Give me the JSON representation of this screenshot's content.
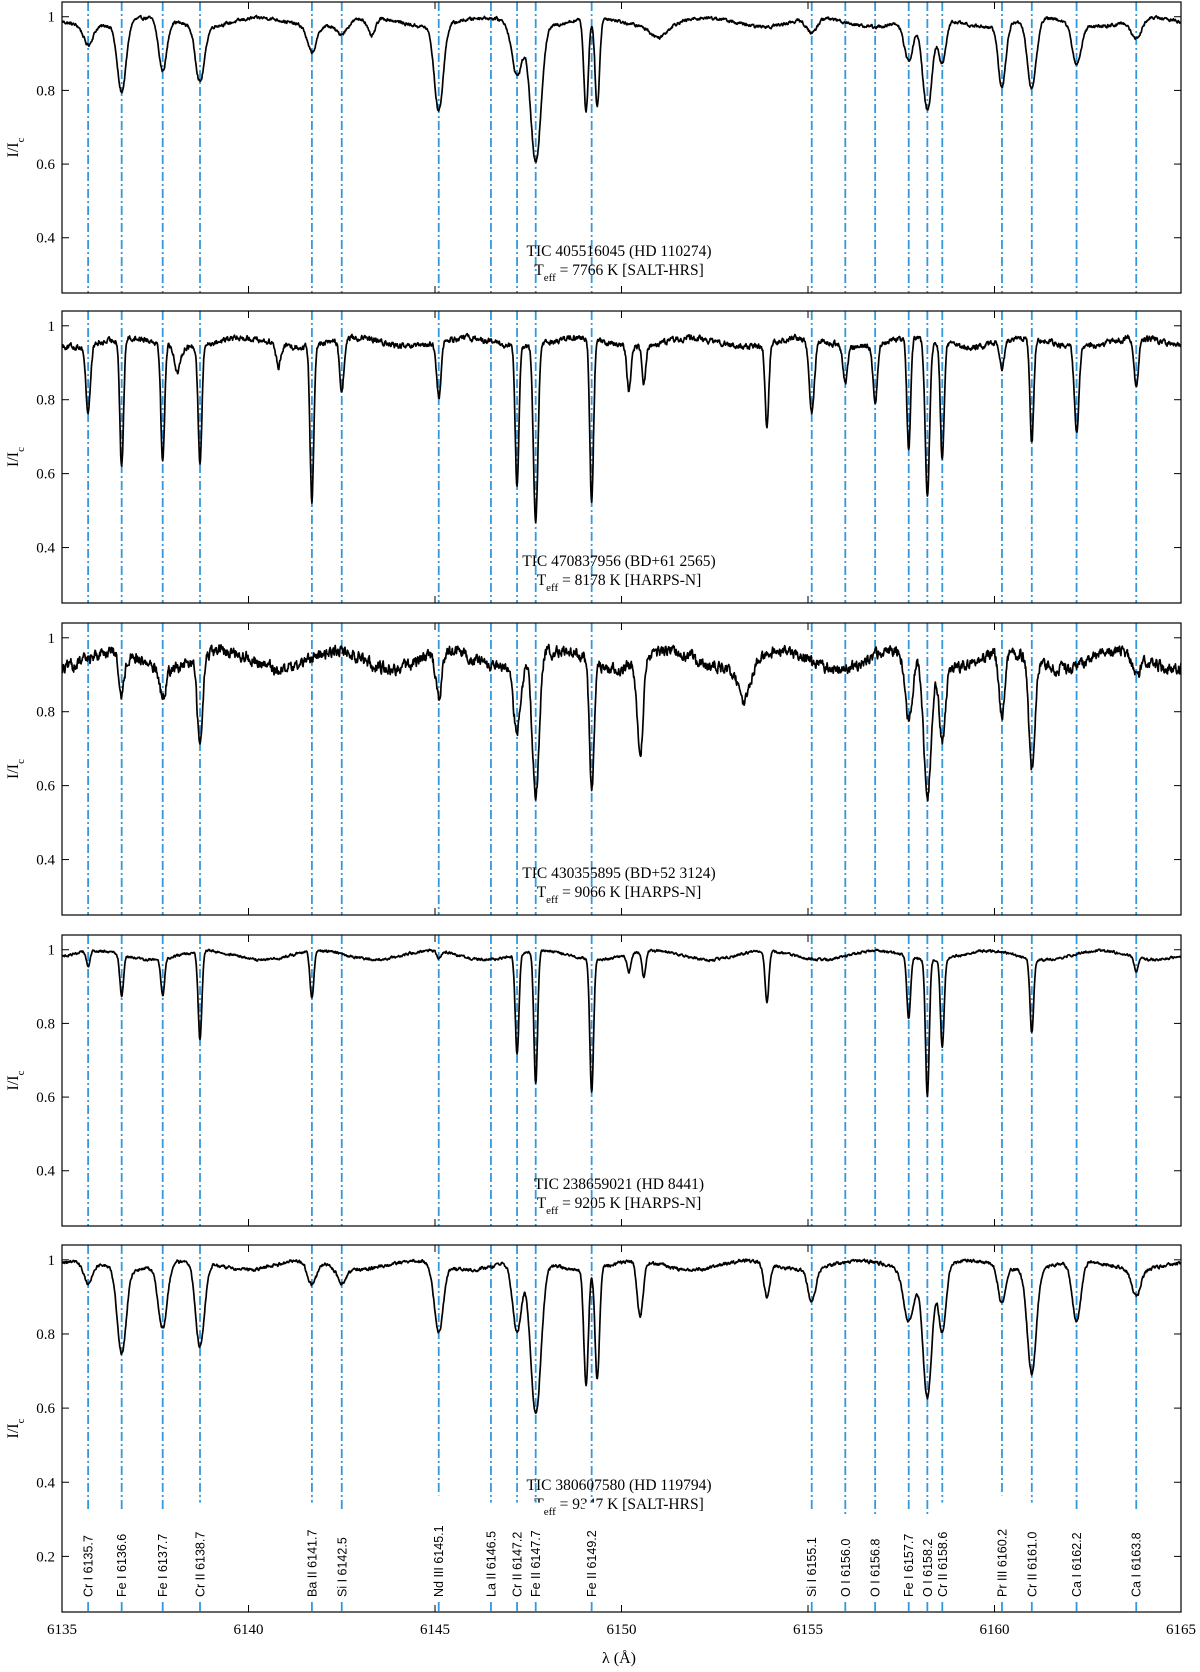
{
  "figure": {
    "xlabel": "λ (Å)",
    "xlim": [
      6135,
      6165
    ],
    "x_ticks": [
      6135,
      6140,
      6145,
      6150,
      6155,
      6160,
      6165
    ],
    "line_color": "#3399dd",
    "spectrum_color": "#000000"
  },
  "chart_data": [
    {
      "type": "line",
      "title": "",
      "annotation": [
        "TIC 405516045 (HD 110274)",
        "Teff = 7766 K [SALT-HRS]"
      ],
      "xlabel": "",
      "ylabel": "I/Ic",
      "xlim": [
        6135,
        6165
      ],
      "ylim": [
        0.25,
        1.04
      ],
      "y_ticks": [
        0.4,
        0.6,
        0.8,
        1
      ],
      "noise": 0.008,
      "series": [
        {
          "continuum": 0.985,
          "absorption": [
            [
              6135.7,
              0.05,
              0.12
            ],
            [
              6136.6,
              0.19,
              0.12
            ],
            [
              6137.7,
              0.14,
              0.11
            ],
            [
              6138.7,
              0.15,
              0.12
            ],
            [
              6141.7,
              0.07,
              0.12
            ],
            [
              6142.5,
              0.03,
              0.15
            ],
            [
              6143.3,
              0.05,
              0.1
            ],
            [
              6145.1,
              0.23,
              0.12
            ],
            [
              6147.2,
              0.14,
              0.14
            ],
            [
              6147.7,
              0.37,
              0.14
            ],
            [
              6149.05,
              0.25,
              0.06
            ],
            [
              6149.35,
              0.24,
              0.06
            ],
            [
              6151.0,
              0.03,
              0.2
            ],
            [
              6155.1,
              0.04,
              0.14
            ],
            [
              6157.7,
              0.11,
              0.12
            ],
            [
              6158.2,
              0.25,
              0.13
            ],
            [
              6158.6,
              0.12,
              0.1
            ],
            [
              6160.2,
              0.17,
              0.1
            ],
            [
              6161.0,
              0.19,
              0.12
            ],
            [
              6162.2,
              0.11,
              0.12
            ],
            [
              6163.8,
              0.05,
              0.14
            ]
          ]
        }
      ]
    },
    {
      "type": "line",
      "title": "",
      "annotation": [
        "TIC 470837956 (BD+61 2565)",
        "Teff = 8178 K [HARPS-N]"
      ],
      "xlabel": "",
      "ylabel": "I/Ic",
      "xlim": [
        6135,
        6165
      ],
      "ylim": [
        0.25,
        1.04
      ],
      "y_ticks": [
        0.4,
        0.6,
        0.8,
        1
      ],
      "noise": 0.014,
      "series": [
        {
          "continuum": 0.955,
          "absorption": [
            [
              6135.7,
              0.18,
              0.06
            ],
            [
              6136.6,
              0.35,
              0.05
            ],
            [
              6137.7,
              0.32,
              0.05
            ],
            [
              6138.1,
              0.07,
              0.08
            ],
            [
              6138.7,
              0.32,
              0.05
            ],
            [
              6140.8,
              0.06,
              0.06
            ],
            [
              6141.7,
              0.42,
              0.05
            ],
            [
              6142.5,
              0.14,
              0.06
            ],
            [
              6145.1,
              0.15,
              0.06
            ],
            [
              6147.2,
              0.38,
              0.05
            ],
            [
              6147.7,
              0.48,
              0.06
            ],
            [
              6149.2,
              0.44,
              0.05
            ],
            [
              6150.2,
              0.12,
              0.05
            ],
            [
              6150.6,
              0.1,
              0.05
            ],
            [
              6153.9,
              0.22,
              0.05
            ],
            [
              6155.1,
              0.2,
              0.07
            ],
            [
              6156.0,
              0.1,
              0.06
            ],
            [
              6156.8,
              0.15,
              0.06
            ],
            [
              6157.7,
              0.3,
              0.05
            ],
            [
              6158.2,
              0.42,
              0.06
            ],
            [
              6158.6,
              0.32,
              0.05
            ],
            [
              6160.2,
              0.08,
              0.06
            ],
            [
              6161.0,
              0.28,
              0.05
            ],
            [
              6162.2,
              0.23,
              0.06
            ],
            [
              6163.8,
              0.13,
              0.06
            ]
          ]
        }
      ]
    },
    {
      "type": "line",
      "title": "",
      "annotation": [
        "TIC 430355895 (BD+52 3124)",
        "Teff = 9066 K [HARPS-N]"
      ],
      "xlabel": "",
      "ylabel": "I/Ic",
      "xlim": [
        6135,
        6165
      ],
      "ylim": [
        0.25,
        1.04
      ],
      "y_ticks": [
        0.4,
        0.6,
        0.8,
        1
      ],
      "noise": 0.028,
      "series": [
        {
          "continuum": 0.94,
          "absorption": [
            [
              6136.6,
              0.11,
              0.08
            ],
            [
              6137.7,
              0.08,
              0.08
            ],
            [
              6138.7,
              0.24,
              0.07
            ],
            [
              6145.1,
              0.12,
              0.08
            ],
            [
              6147.2,
              0.17,
              0.1
            ],
            [
              6147.7,
              0.37,
              0.09
            ],
            [
              6149.2,
              0.36,
              0.06
            ],
            [
              6150.5,
              0.25,
              0.08
            ],
            [
              6153.3,
              0.1,
              0.15
            ],
            [
              6157.7,
              0.18,
              0.1
            ],
            [
              6158.2,
              0.36,
              0.1
            ],
            [
              6158.6,
              0.2,
              0.08
            ],
            [
              6160.2,
              0.17,
              0.08
            ],
            [
              6161.0,
              0.3,
              0.08
            ],
            [
              6163.8,
              0.06,
              0.1
            ]
          ]
        }
      ]
    },
    {
      "type": "line",
      "title": "",
      "annotation": [
        "TIC 238659021 (HD 8441)",
        "Teff = 9205 K [HARPS-N]"
      ],
      "xlabel": "",
      "ylabel": "I/Ic",
      "xlim": [
        6135,
        6165
      ],
      "ylim": [
        0.25,
        1.04
      ],
      "y_ticks": [
        0.4,
        0.6,
        0.8,
        1
      ],
      "noise": 0.006,
      "series": [
        {
          "continuum": 0.985,
          "absorption": [
            [
              6135.7,
              0.04,
              0.05
            ],
            [
              6136.6,
              0.11,
              0.05
            ],
            [
              6137.7,
              0.1,
              0.05
            ],
            [
              6138.7,
              0.24,
              0.05
            ],
            [
              6141.7,
              0.13,
              0.05
            ],
            [
              6145.1,
              0.02,
              0.05
            ],
            [
              6147.2,
              0.27,
              0.05
            ],
            [
              6147.7,
              0.36,
              0.05
            ],
            [
              6149.2,
              0.36,
              0.05
            ],
            [
              6150.2,
              0.05,
              0.05
            ],
            [
              6150.6,
              0.07,
              0.05
            ],
            [
              6153.9,
              0.14,
              0.05
            ],
            [
              6157.7,
              0.17,
              0.05
            ],
            [
              6158.2,
              0.37,
              0.05
            ],
            [
              6158.6,
              0.24,
              0.05
            ],
            [
              6161.0,
              0.2,
              0.05
            ],
            [
              6163.8,
              0.04,
              0.05
            ]
          ]
        }
      ]
    },
    {
      "type": "line",
      "title": "",
      "annotation": [
        "TIC 380607580 (HD 119794)",
        "Teff = 9347 K [SALT-HRS]"
      ],
      "xlabel": "λ (Å)",
      "ylabel": "I/Ic",
      "xlim": [
        6135,
        6165
      ],
      "ylim": [
        0.05,
        1.04
      ],
      "y_ticks": [
        0.2,
        0.4,
        0.6,
        0.8,
        1
      ],
      "noise": 0.008,
      "series": [
        {
          "continuum": 0.985,
          "absorption": [
            [
              6135.7,
              0.06,
              0.12
            ],
            [
              6136.6,
              0.23,
              0.12
            ],
            [
              6137.7,
              0.17,
              0.12
            ],
            [
              6138.7,
              0.23,
              0.12
            ],
            [
              6141.7,
              0.06,
              0.12
            ],
            [
              6142.5,
              0.04,
              0.12
            ],
            [
              6145.1,
              0.18,
              0.12
            ],
            [
              6147.2,
              0.19,
              0.12
            ],
            [
              6147.7,
              0.41,
              0.14
            ],
            [
              6149.05,
              0.31,
              0.06
            ],
            [
              6149.35,
              0.3,
              0.06
            ],
            [
              6150.5,
              0.15,
              0.08
            ],
            [
              6153.9,
              0.09,
              0.08
            ],
            [
              6155.1,
              0.09,
              0.1
            ],
            [
              6157.7,
              0.14,
              0.14
            ],
            [
              6158.2,
              0.35,
              0.12
            ],
            [
              6158.6,
              0.18,
              0.1
            ],
            [
              6160.2,
              0.1,
              0.1
            ],
            [
              6161.0,
              0.28,
              0.12
            ],
            [
              6162.2,
              0.16,
              0.12
            ],
            [
              6163.8,
              0.07,
              0.12
            ]
          ]
        }
      ]
    }
  ],
  "lines": [
    {
      "label": "Cr I 6135.7",
      "lambda": 6135.7
    },
    {
      "label": "Fe I 6136.6",
      "lambda": 6136.6
    },
    {
      "label": "Fe I 6137.7",
      "lambda": 6137.7
    },
    {
      "label": "Cr II 6138.7",
      "lambda": 6138.7
    },
    {
      "label": "Ba II 6141.7",
      "lambda": 6141.7
    },
    {
      "label": "Si I 6142.5",
      "lambda": 6142.5
    },
    {
      "label": "Nd III 6145.1",
      "lambda": 6145.1
    },
    {
      "label": "La II 6146.5",
      "lambda": 6146.5
    },
    {
      "label": "Cr II 6147.2",
      "lambda": 6147.2
    },
    {
      "label": "Fe II 6147.7",
      "lambda": 6147.7
    },
    {
      "label": "Fe II 6149.2",
      "lambda": 6149.2
    },
    {
      "label": "Si I 6155.1",
      "lambda": 6155.1
    },
    {
      "label": "O I 6156.0",
      "lambda": 6156.0
    },
    {
      "label": "O I 6156.8",
      "lambda": 6156.8
    },
    {
      "label": "Fe I 6157.7",
      "lambda": 6157.7
    },
    {
      "label": "O I 6158.2",
      "lambda": 6158.2
    },
    {
      "label": "Cr II 6158.6",
      "lambda": 6158.6
    },
    {
      "label": "Pr III 6160.2",
      "lambda": 6160.2
    },
    {
      "label": "Cr II 6161.0",
      "lambda": 6161.0
    },
    {
      "label": "Ca I 6162.2",
      "lambda": 6162.2
    },
    {
      "label": "Ca I 6163.8",
      "lambda": 6163.8
    }
  ]
}
